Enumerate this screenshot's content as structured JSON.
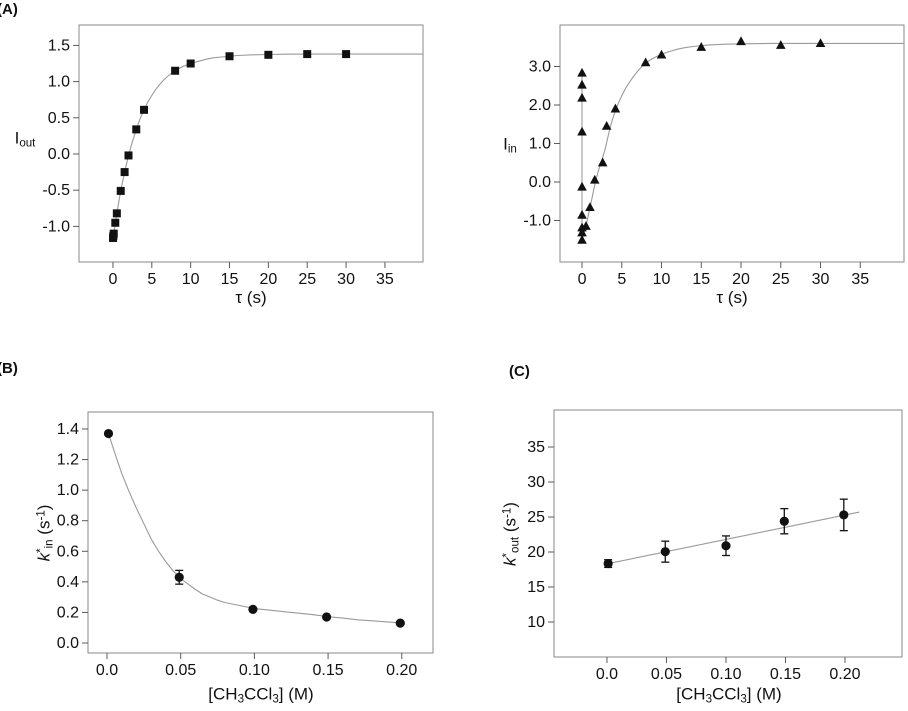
{
  "figure": {
    "panel_labels": {
      "a": "(A)",
      "b": "(B)",
      "c": "(C)"
    }
  },
  "style": {
    "frame_color": "#8a8a8a",
    "fit_color": "#9a9a9a",
    "tick_color": "#5a5a5a",
    "text_color": "#111111",
    "marker_color": "#111111",
    "background": "#ffffff"
  },
  "chart_data": [
    {
      "id": "panel-a-left",
      "type": "scatter",
      "marker": "square",
      "xlabel": [
        {
          "t": "τ"
        },
        {
          "t": " (s)"
        }
      ],
      "ylabel": [
        {
          "t": "I"
        },
        {
          "t": "out",
          "s": "sub"
        }
      ],
      "xlim": [
        -4.37,
        39.9
      ],
      "ylim": [
        -1.492,
        1.782
      ],
      "xticks": [
        {
          "v": 0,
          "l": "0"
        },
        {
          "v": 5,
          "l": "5"
        },
        {
          "v": 10,
          "l": "10"
        },
        {
          "v": 15,
          "l": "15"
        },
        {
          "v": 20,
          "l": "20"
        },
        {
          "v": 25,
          "l": "25"
        },
        {
          "v": 30,
          "l": "30"
        },
        {
          "v": 35,
          "l": "35"
        }
      ],
      "yticks": [
        {
          "v": 1.5,
          "l": "1.5"
        },
        {
          "v": 1.0,
          "l": "1.0"
        },
        {
          "v": 0.5,
          "l": "0.5"
        },
        {
          "v": 0.0,
          "l": "0.0"
        },
        {
          "v": -0.5,
          "l": "-0.5"
        },
        {
          "v": -1.0,
          "l": "-1.0"
        }
      ],
      "points": [
        [
          0.01,
          -1.16
        ],
        [
          0.05,
          -1.13
        ],
        [
          0.1,
          -1.1
        ],
        [
          0.3,
          -0.95
        ],
        [
          0.5,
          -0.82
        ],
        [
          1,
          -0.51
        ],
        [
          1.5,
          -0.25
        ],
        [
          2,
          -0.02
        ],
        [
          3,
          0.34
        ],
        [
          4,
          0.61
        ],
        [
          8,
          1.15
        ],
        [
          10,
          1.25
        ],
        [
          15,
          1.35
        ],
        [
          20,
          1.37
        ],
        [
          25,
          1.38
        ],
        [
          30,
          1.38
        ]
      ],
      "fits": [
        [
          [
            0,
            -1.17
          ],
          [
            0.5,
            -0.82
          ],
          [
            1,
            -0.51
          ],
          [
            1.5,
            -0.25
          ],
          [
            2,
            -0.02
          ],
          [
            2.5,
            0.17
          ],
          [
            3,
            0.34
          ],
          [
            3.5,
            0.49
          ],
          [
            4,
            0.61
          ],
          [
            4.5,
            0.72
          ],
          [
            5,
            0.81
          ],
          [
            5.5,
            0.89
          ],
          [
            6,
            0.96
          ],
          [
            6.5,
            1.02
          ],
          [
            7,
            1.07
          ],
          [
            7.5,
            1.11
          ],
          [
            8,
            1.15
          ],
          [
            8.5,
            1.18
          ],
          [
            9,
            1.21
          ],
          [
            9.5,
            1.23
          ],
          [
            10,
            1.25
          ],
          [
            11,
            1.28
          ],
          [
            12,
            1.31
          ],
          [
            13,
            1.33
          ],
          [
            14,
            1.34
          ],
          [
            15,
            1.35
          ],
          [
            16,
            1.36
          ],
          [
            18,
            1.37
          ],
          [
            20,
            1.375
          ],
          [
            22,
            1.378
          ],
          [
            25,
            1.38
          ],
          [
            28,
            1.38
          ],
          [
            39.9,
            1.38
          ]
        ]
      ]
    },
    {
      "id": "panel-a-right",
      "type": "scatter",
      "marker": "triangle",
      "xlabel": [
        {
          "t": "τ"
        },
        {
          "t": " (s)"
        }
      ],
      "ylabel": [
        {
          "t": "I"
        },
        {
          "t": "in",
          "s": "sub"
        }
      ],
      "xlim": [
        -2.77,
        40.5
      ],
      "ylim": [
        -2.078,
        4.078
      ],
      "xticks": [
        {
          "v": 0,
          "l": "0"
        },
        {
          "v": 5,
          "l": "5"
        },
        {
          "v": 10,
          "l": "10"
        },
        {
          "v": 15,
          "l": "15"
        },
        {
          "v": 20,
          "l": "20"
        },
        {
          "v": 25,
          "l": "25"
        },
        {
          "v": 30,
          "l": "30"
        },
        {
          "v": 35,
          "l": "35"
        }
      ],
      "yticks": [
        {
          "v": 3.0,
          "l": "3.0"
        },
        {
          "v": 2.0,
          "l": "2.0"
        },
        {
          "v": 1.0,
          "l": "1.0"
        },
        {
          "v": 0.0,
          "l": "0.0"
        },
        {
          "v": -1.0,
          "l": "-1.0"
        }
      ],
      "points": [
        [
          0,
          2.83
        ],
        [
          0,
          2.52
        ],
        [
          0,
          2.18
        ],
        [
          0,
          1.3
        ],
        [
          0,
          -0.13
        ],
        [
          0,
          -0.86
        ],
        [
          0,
          -1.19
        ],
        [
          0,
          -1.32
        ],
        [
          0,
          -1.51
        ],
        [
          0.5,
          -1.15
        ],
        [
          1,
          -0.66
        ],
        [
          1.6,
          0.05
        ],
        [
          2.6,
          0.5
        ],
        [
          3.1,
          1.45
        ],
        [
          4.2,
          1.9
        ],
        [
          8,
          3.1
        ],
        [
          10,
          3.3
        ],
        [
          15,
          3.5
        ],
        [
          20,
          3.65
        ],
        [
          25,
          3.55
        ],
        [
          30,
          3.6
        ]
      ],
      "fits": [
        [
          [
            0,
            -1.51
          ],
          [
            0,
            2.83
          ]
        ],
        [
          [
            0,
            -1.51
          ],
          [
            0.25,
            -1.33
          ],
          [
            0.5,
            -1.15
          ],
          [
            0.75,
            -0.9
          ],
          [
            1,
            -0.66
          ],
          [
            1.25,
            -0.42
          ],
          [
            1.5,
            -0.18
          ],
          [
            1.75,
            0.05
          ],
          [
            2,
            0.25
          ],
          [
            2.3,
            0.45
          ],
          [
            2.6,
            0.64
          ],
          [
            2.9,
            0.85
          ],
          [
            3.2,
            1.12
          ],
          [
            3.5,
            1.38
          ],
          [
            3.8,
            1.6
          ],
          [
            4.2,
            1.86
          ],
          [
            4.6,
            2.06
          ],
          [
            5,
            2.24
          ],
          [
            5.5,
            2.44
          ],
          [
            6,
            2.6
          ],
          [
            6.5,
            2.75
          ],
          [
            7,
            2.88
          ],
          [
            7.5,
            2.99
          ],
          [
            8,
            3.08
          ],
          [
            8.5,
            3.16
          ],
          [
            9,
            3.22
          ],
          [
            9.5,
            3.27
          ],
          [
            10,
            3.32
          ],
          [
            11,
            3.39
          ],
          [
            12,
            3.45
          ],
          [
            13,
            3.49
          ],
          [
            14,
            3.52
          ],
          [
            15,
            3.54
          ],
          [
            16,
            3.56
          ],
          [
            18,
            3.58
          ],
          [
            20,
            3.59
          ],
          [
            24,
            3.6
          ],
          [
            28,
            3.6
          ],
          [
            40.5,
            3.6
          ]
        ]
      ]
    },
    {
      "id": "panel-b",
      "type": "scatter",
      "marker": "circle",
      "xlabel": [
        {
          "t": "[CH"
        },
        {
          "t": "3",
          "s": "sub"
        },
        {
          "t": "CCl"
        },
        {
          "t": "3",
          "s": "sub"
        },
        {
          "t": "] (M)"
        }
      ],
      "ylabel": [
        {
          "t": "k",
          "s": "i"
        },
        {
          "t": "*",
          "s": "sup"
        },
        {
          "t": "in",
          "s": "sub"
        },
        {
          "t": " (s"
        },
        {
          "t": "-1",
          "s": "sup"
        },
        {
          "t": ")"
        }
      ],
      "xlim": [
        -0.0129,
        0.2212
      ],
      "ylim": [
        -0.0654,
        1.511
      ],
      "xticks": [
        {
          "v": 0,
          "l": "0.0"
        },
        {
          "v": 0.05,
          "l": "0.05"
        },
        {
          "v": 0.1,
          "l": "0.10"
        },
        {
          "v": 0.15,
          "l": "0.15"
        },
        {
          "v": 0.2,
          "l": "0.20"
        }
      ],
      "yticks": [
        {
          "v": 1.4,
          "l": "1.4"
        },
        {
          "v": 1.2,
          "l": "1.2"
        },
        {
          "v": 1.0,
          "l": "1.0"
        },
        {
          "v": 0.8,
          "l": "0.8"
        },
        {
          "v": 0.6,
          "l": "0.6"
        },
        {
          "v": 0.4,
          "l": "0.4"
        },
        {
          "v": 0.2,
          "l": "0.2"
        },
        {
          "v": 0.0,
          "l": "0.0"
        }
      ],
      "points": [
        [
          0.001,
          1.37
        ],
        [
          0.049,
          0.43
        ],
        [
          0.099,
          0.22
        ],
        [
          0.149,
          0.17
        ],
        [
          0.199,
          0.13
        ]
      ],
      "errors": [
        0,
        0.045,
        0,
        0,
        0
      ],
      "fits": [
        [
          [
            0.001,
            1.37
          ],
          [
            0.005,
            1.25
          ],
          [
            0.01,
            1.11
          ],
          [
            0.015,
            0.99
          ],
          [
            0.02,
            0.88
          ],
          [
            0.025,
            0.78
          ],
          [
            0.03,
            0.68
          ],
          [
            0.035,
            0.6
          ],
          [
            0.04,
            0.53
          ],
          [
            0.045,
            0.47
          ],
          [
            0.05,
            0.42
          ],
          [
            0.055,
            0.385
          ],
          [
            0.06,
            0.35
          ],
          [
            0.065,
            0.32
          ],
          [
            0.07,
            0.3
          ],
          [
            0.075,
            0.28
          ],
          [
            0.08,
            0.265
          ],
          [
            0.09,
            0.245
          ],
          [
            0.1,
            0.225
          ],
          [
            0.11,
            0.215
          ],
          [
            0.12,
            0.205
          ],
          [
            0.13,
            0.195
          ],
          [
            0.14,
            0.185
          ],
          [
            0.15,
            0.172
          ],
          [
            0.16,
            0.163
          ],
          [
            0.17,
            0.152
          ],
          [
            0.18,
            0.145
          ],
          [
            0.19,
            0.138
          ],
          [
            0.199,
            0.132
          ]
        ]
      ]
    },
    {
      "id": "panel-c",
      "type": "scatter",
      "marker": "circle",
      "xlabel": [
        {
          "t": "[CH"
        },
        {
          "t": "3",
          "s": "sub"
        },
        {
          "t": "CCl"
        },
        {
          "t": "3",
          "s": "sub"
        },
        {
          "t": "] (M)"
        }
      ],
      "ylabel": [
        {
          "t": "k",
          "s": "i"
        },
        {
          "t": "*",
          "s": "sup"
        },
        {
          "t": "out",
          "s": "sub"
        },
        {
          "t": " (s"
        },
        {
          "t": "-1",
          "s": "sup"
        },
        {
          "t": ")"
        }
      ],
      "xlim": [
        -0.0445,
        0.2479
      ],
      "ylim": [
        5.0,
        40.29
      ],
      "xticks": [
        {
          "v": 0,
          "l": "0.0"
        },
        {
          "v": 0.05,
          "l": "0.05"
        },
        {
          "v": 0.1,
          "l": "0.10"
        },
        {
          "v": 0.15,
          "l": "0.15"
        },
        {
          "v": 0.2,
          "l": "0.20"
        }
      ],
      "yticks": [
        {
          "v": 35,
          "l": "35"
        },
        {
          "v": 30,
          "l": "30"
        },
        {
          "v": 25,
          "l": "25"
        },
        {
          "v": 20,
          "l": "20"
        },
        {
          "v": 15,
          "l": "15"
        },
        {
          "v": 10,
          "l": "10"
        }
      ],
      "points": [
        [
          0.001,
          18.35
        ],
        [
          0.049,
          20.05
        ],
        [
          0.1,
          20.9
        ],
        [
          0.149,
          24.4
        ],
        [
          0.199,
          25.3
        ]
      ],
      "errors": [
        0.55,
        1.5,
        1.4,
        1.8,
        2.25
      ],
      "fits": [
        [
          [
            0.001,
            18.35
          ],
          [
            0.212,
            25.7
          ]
        ]
      ]
    }
  ]
}
